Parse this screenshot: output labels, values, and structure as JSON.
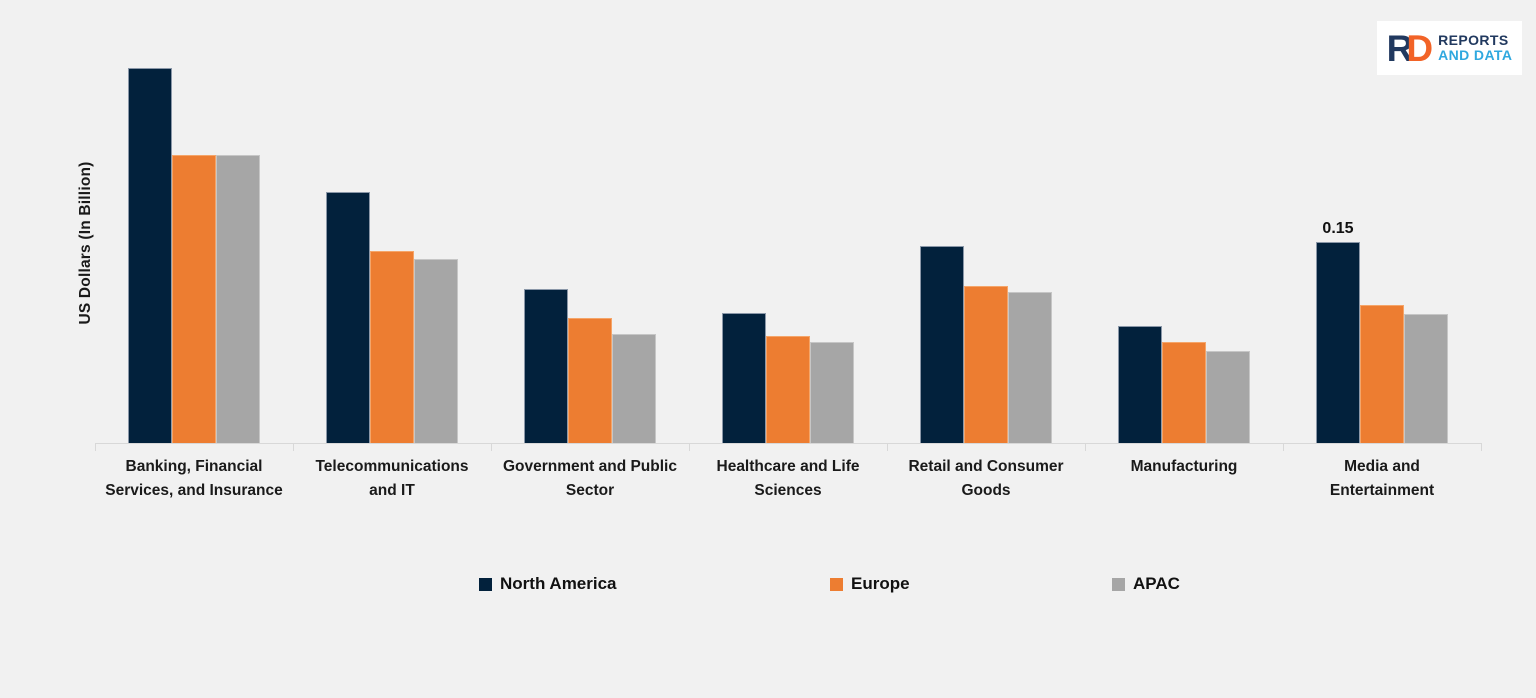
{
  "page": {
    "background_color": "#F1F1F1",
    "axis_color": "#D8D8D8",
    "text_color": "#1A1A1A"
  },
  "logo": {
    "monogram_r": "R",
    "monogram_d": "D",
    "line1": "REPORTS",
    "line2": "AND DATA",
    "navy": "#21395F",
    "blue": "#2FA8DF",
    "orange": "#F26327"
  },
  "chart_data": {
    "type": "bar",
    "title": "",
    "xlabel": "",
    "ylabel": "US Dollars  (In Billion)",
    "ylim": [
      0,
      0.3
    ],
    "grid": false,
    "legend_position": "bottom",
    "categories": [
      "Banking, Financial Services, and Insurance",
      "Telecommunications and IT",
      "Government and Public Sector",
      "Healthcare and Life Sciences",
      "Retail and Consumer Goods",
      "Manufacturing",
      "Media and Entertainment"
    ],
    "category_label_lines": [
      "Banking, Financial\nServices, and Insurance",
      "Telecommunications\nand IT",
      "Government and Public\nSector",
      "Healthcare and Life\nSciences",
      "Retail and Consumer\nGoods",
      "Manufacturing",
      "Media and\nEntertainment"
    ],
    "series": [
      {
        "name": "North America",
        "color": "#02213C",
        "border_color": "#8A97A8",
        "values": [
          0.28,
          0.187,
          0.115,
          0.097,
          0.147,
          0.087,
          0.15
        ]
      },
      {
        "name": "Europe",
        "color": "#ED7D31",
        "border_color": "#F5A569",
        "values": [
          0.215,
          0.143,
          0.093,
          0.08,
          0.117,
          0.075,
          0.103
        ]
      },
      {
        "name": "APAC",
        "color": "#A6A6A6",
        "border_color": "#C6C6C6",
        "values": [
          0.215,
          0.137,
          0.081,
          0.075,
          0.113,
          0.069,
          0.096
        ]
      }
    ],
    "data_labels": [
      {
        "category_index": 6,
        "series_index": 0,
        "text": "0.15"
      }
    ]
  }
}
